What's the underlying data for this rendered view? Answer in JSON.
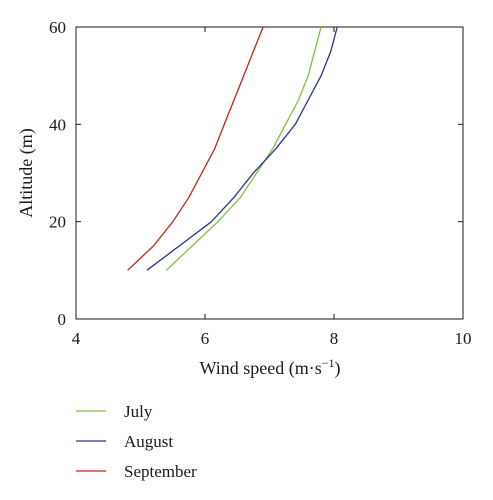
{
  "chart_data": {
    "type": "line",
    "title": "",
    "xlabel": "Wind speed (m·s",
    "xlabel_sup": "−1",
    "xlabel_close": ")",
    "ylabel": "Altitude (m)",
    "xlim": [
      4,
      10
    ],
    "ylim": [
      0,
      60
    ],
    "x_ticks": [
      4,
      6,
      8,
      10
    ],
    "y_ticks": [
      0,
      20,
      40,
      60
    ],
    "grid": false,
    "legend_position": "bottom",
    "series": [
      {
        "name": "July",
        "color": "#7ec13f",
        "points": [
          [
            5.4,
            10
          ],
          [
            5.8,
            15
          ],
          [
            6.2,
            20
          ],
          [
            6.55,
            25
          ],
          [
            6.8,
            30
          ],
          [
            7.05,
            35
          ],
          [
            7.25,
            40
          ],
          [
            7.45,
            45
          ],
          [
            7.6,
            50
          ],
          [
            7.7,
            55
          ],
          [
            7.8,
            60
          ]
        ]
      },
      {
        "name": "August",
        "color": "#2e3192",
        "points": [
          [
            5.1,
            10
          ],
          [
            5.6,
            15
          ],
          [
            6.1,
            20
          ],
          [
            6.45,
            25
          ],
          [
            6.75,
            30
          ],
          [
            7.1,
            35
          ],
          [
            7.4,
            40
          ],
          [
            7.6,
            45
          ],
          [
            7.8,
            50
          ],
          [
            7.95,
            55
          ],
          [
            8.05,
            60
          ]
        ]
      },
      {
        "name": "September",
        "color": "#cc1f1f",
        "points": [
          [
            4.8,
            10
          ],
          [
            5.2,
            15
          ],
          [
            5.5,
            20
          ],
          [
            5.75,
            25
          ],
          [
            5.95,
            30
          ],
          [
            6.15,
            35
          ],
          [
            6.3,
            40
          ],
          [
            6.45,
            45
          ],
          [
            6.6,
            50
          ],
          [
            6.75,
            55
          ],
          [
            6.9,
            60
          ]
        ]
      }
    ]
  }
}
